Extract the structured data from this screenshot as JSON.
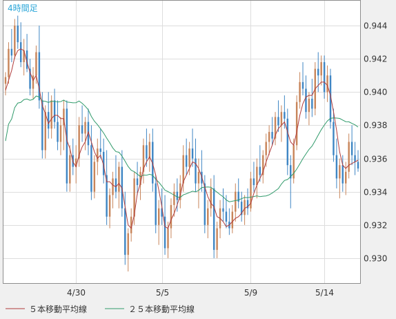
{
  "chart_data": {
    "type": "candlestick",
    "title": "4時間足",
    "ylim": [
      0.9285,
      0.9455
    ],
    "y_ticks": [
      "0.944",
      "0.942",
      "0.940",
      "0.938",
      "0.936",
      "0.934",
      "0.932",
      "0.930"
    ],
    "x_labels": [
      "4/30",
      "5/5",
      "5/9",
      "5/14"
    ],
    "x_label_index": [
      23,
      51,
      80,
      104
    ],
    "colors": {
      "up": "#c8855a",
      "down": "#3f86c4",
      "ma5": "#b03a3a",
      "ma25": "#2f9a6a"
    },
    "legend": [
      {
        "name": "５本移動平均線",
        "color": "#b03a3a"
      },
      {
        "name": "２５本移動平均線",
        "color": "#2f9a6a"
      }
    ],
    "candles": [
      [
        0.9405,
        0.9412,
        0.9398,
        0.9409
      ],
      [
        0.9409,
        0.943,
        0.9405,
        0.9426
      ],
      [
        0.9426,
        0.9438,
        0.9418,
        0.9422
      ],
      [
        0.9422,
        0.9444,
        0.942,
        0.944
      ],
      [
        0.944,
        0.9446,
        0.9426,
        0.943
      ],
      [
        0.943,
        0.9442,
        0.9415,
        0.9418
      ],
      [
        0.9418,
        0.9432,
        0.941,
        0.9425
      ],
      [
        0.9425,
        0.9435,
        0.9412,
        0.9414
      ],
      [
        0.9414,
        0.942,
        0.9398,
        0.9402
      ],
      [
        0.9402,
        0.9415,
        0.9396,
        0.941
      ],
      [
        0.941,
        0.9428,
        0.9405,
        0.9424
      ],
      [
        0.9424,
        0.944,
        0.939,
        0.9395
      ],
      [
        0.9395,
        0.94,
        0.936,
        0.9365
      ],
      [
        0.9365,
        0.9392,
        0.936,
        0.9388
      ],
      [
        0.9388,
        0.94,
        0.9372,
        0.9378
      ],
      [
        0.9378,
        0.9398,
        0.9372,
        0.9395
      ],
      [
        0.9395,
        0.9402,
        0.9378,
        0.9382
      ],
      [
        0.9382,
        0.9395,
        0.9365,
        0.937
      ],
      [
        0.937,
        0.9385,
        0.9362,
        0.938
      ],
      [
        0.938,
        0.9395,
        0.9365,
        0.939
      ],
      [
        0.939,
        0.9395,
        0.934,
        0.9345
      ],
      [
        0.9345,
        0.9368,
        0.934,
        0.9362
      ],
      [
        0.9362,
        0.9372,
        0.935,
        0.9355
      ],
      [
        0.9355,
        0.9368,
        0.9345,
        0.936
      ],
      [
        0.936,
        0.9385,
        0.9355,
        0.938
      ],
      [
        0.938,
        0.9392,
        0.937,
        0.9375
      ],
      [
        0.9375,
        0.9385,
        0.9365,
        0.9382
      ],
      [
        0.9382,
        0.939,
        0.9362,
        0.9368
      ],
      [
        0.9368,
        0.938,
        0.9335,
        0.934
      ],
      [
        0.934,
        0.9362,
        0.9336,
        0.9358
      ],
      [
        0.9358,
        0.9372,
        0.935,
        0.9366
      ],
      [
        0.9366,
        0.9378,
        0.936,
        0.9364
      ],
      [
        0.9364,
        0.9372,
        0.9345,
        0.935
      ],
      [
        0.935,
        0.9365,
        0.932,
        0.9325
      ],
      [
        0.9325,
        0.9342,
        0.9318,
        0.9338
      ],
      [
        0.9338,
        0.9352,
        0.933,
        0.9348
      ],
      [
        0.9348,
        0.9362,
        0.9336,
        0.934
      ],
      [
        0.934,
        0.9358,
        0.933,
        0.9355
      ],
      [
        0.9355,
        0.9365,
        0.9325,
        0.933
      ],
      [
        0.933,
        0.934,
        0.9296,
        0.9302
      ],
      [
        0.9302,
        0.9318,
        0.9292,
        0.9315
      ],
      [
        0.9315,
        0.933,
        0.931,
        0.9325
      ],
      [
        0.9325,
        0.9352,
        0.932,
        0.9348
      ],
      [
        0.9348,
        0.9358,
        0.9338,
        0.9344
      ],
      [
        0.9344,
        0.9355,
        0.9335,
        0.9352
      ],
      [
        0.9352,
        0.9372,
        0.9345,
        0.9368
      ],
      [
        0.9368,
        0.9378,
        0.9355,
        0.936
      ],
      [
        0.936,
        0.9375,
        0.9352,
        0.937
      ],
      [
        0.937,
        0.9378,
        0.934,
        0.9345
      ],
      [
        0.9345,
        0.935,
        0.9315,
        0.932
      ],
      [
        0.932,
        0.9335,
        0.9308,
        0.933
      ],
      [
        0.933,
        0.9342,
        0.932,
        0.9325
      ],
      [
        0.9325,
        0.9338,
        0.9302,
        0.9306
      ],
      [
        0.9306,
        0.9322,
        0.93,
        0.9318
      ],
      [
        0.9318,
        0.9336,
        0.9312,
        0.9332
      ],
      [
        0.9332,
        0.9345,
        0.9325,
        0.934
      ],
      [
        0.934,
        0.9348,
        0.9328,
        0.9335
      ],
      [
        0.9335,
        0.935,
        0.933,
        0.9345
      ],
      [
        0.9345,
        0.9368,
        0.934,
        0.9362
      ],
      [
        0.9362,
        0.9372,
        0.935,
        0.9355
      ],
      [
        0.9355,
        0.937,
        0.935,
        0.9366
      ],
      [
        0.9366,
        0.9378,
        0.9355,
        0.936
      ],
      [
        0.936,
        0.9372,
        0.934,
        0.9345
      ],
      [
        0.9345,
        0.936,
        0.933,
        0.9352
      ],
      [
        0.9352,
        0.9365,
        0.934,
        0.9345
      ],
      [
        0.9345,
        0.935,
        0.9315,
        0.932
      ],
      [
        0.932,
        0.9335,
        0.9312,
        0.933
      ],
      [
        0.933,
        0.9348,
        0.9325,
        0.9342
      ],
      [
        0.9342,
        0.935,
        0.93,
        0.9305
      ],
      [
        0.9305,
        0.9322,
        0.93,
        0.9318
      ],
      [
        0.9318,
        0.9335,
        0.9312,
        0.933
      ],
      [
        0.933,
        0.9342,
        0.9322,
        0.9328
      ],
      [
        0.9328,
        0.9338,
        0.9318,
        0.9322
      ],
      [
        0.9322,
        0.933,
        0.9314,
        0.9318
      ],
      [
        0.9318,
        0.9332,
        0.9315,
        0.9328
      ],
      [
        0.9328,
        0.9345,
        0.9322,
        0.934
      ],
      [
        0.934,
        0.9348,
        0.933,
        0.9334
      ],
      [
        0.9334,
        0.934,
        0.9322,
        0.9326
      ],
      [
        0.9326,
        0.9338,
        0.932,
        0.9335
      ],
      [
        0.9335,
        0.9342,
        0.9326,
        0.933
      ],
      [
        0.933,
        0.9352,
        0.9328,
        0.9348
      ],
      [
        0.9348,
        0.9358,
        0.934,
        0.9344
      ],
      [
        0.9344,
        0.936,
        0.9336,
        0.9355
      ],
      [
        0.9355,
        0.9368,
        0.9346,
        0.935
      ],
      [
        0.935,
        0.9365,
        0.9345,
        0.9362
      ],
      [
        0.9362,
        0.9375,
        0.9355,
        0.937
      ],
      [
        0.937,
        0.938,
        0.9362,
        0.9376
      ],
      [
        0.9376,
        0.9385,
        0.9368,
        0.9372
      ],
      [
        0.9372,
        0.9388,
        0.9368,
        0.9385
      ],
      [
        0.9385,
        0.9395,
        0.9376,
        0.938
      ],
      [
        0.938,
        0.9392,
        0.937,
        0.9388
      ],
      [
        0.9388,
        0.9398,
        0.9378,
        0.9384
      ],
      [
        0.9384,
        0.939,
        0.935,
        0.9356
      ],
      [
        0.9356,
        0.9362,
        0.933,
        0.9348
      ],
      [
        0.9348,
        0.9372,
        0.9345,
        0.9368
      ],
      [
        0.9368,
        0.9398,
        0.9365,
        0.9394
      ],
      [
        0.9394,
        0.9412,
        0.939,
        0.9406
      ],
      [
        0.9406,
        0.9418,
        0.9398,
        0.9402
      ],
      [
        0.9402,
        0.941,
        0.9384,
        0.9388
      ],
      [
        0.9388,
        0.94,
        0.938,
        0.9396
      ],
      [
        0.9396,
        0.9408,
        0.9385,
        0.939
      ],
      [
        0.939,
        0.9418,
        0.9386,
        0.9414
      ],
      [
        0.9414,
        0.9424,
        0.94,
        0.941
      ],
      [
        0.941,
        0.9422,
        0.9404,
        0.9418
      ],
      [
        0.9418,
        0.9422,
        0.9396,
        0.94
      ],
      [
        0.94,
        0.9416,
        0.9394,
        0.941
      ],
      [
        0.941,
        0.9414,
        0.9378,
        0.9382
      ],
      [
        0.9382,
        0.939,
        0.9358,
        0.9362
      ],
      [
        0.9362,
        0.9372,
        0.9342,
        0.9348
      ],
      [
        0.9348,
        0.936,
        0.9336,
        0.9356
      ],
      [
        0.9356,
        0.9362,
        0.934,
        0.9345
      ],
      [
        0.9345,
        0.9358,
        0.9338,
        0.9352
      ],
      [
        0.9352,
        0.9375,
        0.9348,
        0.937
      ],
      [
        0.937,
        0.938,
        0.9356,
        0.9362
      ],
      [
        0.9362,
        0.937,
        0.935,
        0.9358
      ],
      [
        0.9358,
        0.9365,
        0.9352,
        0.9354
      ]
    ],
    "ma5": [
      0.9401,
      0.9407,
      0.9413,
      0.9421,
      0.9425,
      0.9426,
      0.9425,
      0.9418,
      0.9412,
      0.9407,
      0.941,
      0.9402,
      0.9392,
      0.9387,
      0.9381,
      0.9384,
      0.9386,
      0.9386,
      0.9384,
      0.9384,
      0.9371,
      0.9366,
      0.9358,
      0.9355,
      0.9362,
      0.9367,
      0.937,
      0.9376,
      0.937,
      0.9364,
      0.936,
      0.9362,
      0.9356,
      0.9346,
      0.9346,
      0.9344,
      0.9343,
      0.9345,
      0.9342,
      0.9331,
      0.932,
      0.9318,
      0.9326,
      0.9339,
      0.9345,
      0.9354,
      0.9358,
      0.9361,
      0.9357,
      0.935,
      0.9341,
      0.9331,
      0.9319,
      0.9318,
      0.9323,
      0.9327,
      0.9332,
      0.9338,
      0.9346,
      0.935,
      0.9354,
      0.9358,
      0.9357,
      0.9354,
      0.9349,
      0.9343,
      0.9337,
      0.9333,
      0.9331,
      0.9325,
      0.9324,
      0.9322,
      0.9319,
      0.932,
      0.9322,
      0.9324,
      0.9325,
      0.9327,
      0.933,
      0.9331,
      0.9333,
      0.9339,
      0.9344,
      0.9348,
      0.9352,
      0.9358,
      0.9363,
      0.9368,
      0.9374,
      0.9378,
      0.938,
      0.9382,
      0.9376,
      0.937,
      0.9368,
      0.9376,
      0.9386,
      0.9393,
      0.9397,
      0.9398,
      0.9398,
      0.9402,
      0.9404,
      0.9406,
      0.9406,
      0.9404,
      0.9398,
      0.9388,
      0.9377,
      0.9364,
      0.9356,
      0.9354,
      0.9356,
      0.9357,
      0.9358,
      0.9359
    ]
  }
}
